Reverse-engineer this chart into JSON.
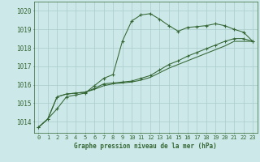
{
  "title": "Graphe pression niveau de la mer (hPa)",
  "background_color": "#cce8e8",
  "grid_color": "#aacccc",
  "line_color": "#336633",
  "xlim": [
    -0.5,
    23.5
  ],
  "ylim": [
    1013.4,
    1020.5
  ],
  "yticks": [
    1014,
    1015,
    1016,
    1017,
    1018,
    1019,
    1020
  ],
  "xticks": [
    0,
    1,
    2,
    3,
    4,
    5,
    6,
    7,
    8,
    9,
    10,
    11,
    12,
    13,
    14,
    15,
    16,
    17,
    18,
    19,
    20,
    21,
    22,
    23
  ],
  "series1": [
    1013.7,
    1014.15,
    1014.7,
    1015.35,
    1015.45,
    1015.55,
    1015.95,
    1016.35,
    1016.55,
    1018.35,
    1019.45,
    1019.78,
    1019.85,
    1019.55,
    1019.2,
    1018.9,
    1019.1,
    1019.15,
    1019.2,
    1019.3,
    1019.2,
    1019.0,
    1018.85,
    1018.35
  ],
  "series2": [
    1013.7,
    1014.15,
    1015.35,
    1015.5,
    1015.55,
    1015.6,
    1015.8,
    1016.05,
    1016.1,
    1016.15,
    1016.2,
    1016.35,
    1016.5,
    1016.8,
    1017.1,
    1017.3,
    1017.55,
    1017.75,
    1017.95,
    1018.15,
    1018.35,
    1018.5,
    1018.5,
    1018.35
  ],
  "series3": [
    1013.7,
    1014.15,
    1015.35,
    1015.5,
    1015.55,
    1015.6,
    1015.75,
    1015.95,
    1016.05,
    1016.1,
    1016.15,
    1016.25,
    1016.4,
    1016.65,
    1016.9,
    1017.1,
    1017.3,
    1017.5,
    1017.7,
    1017.9,
    1018.1,
    1018.35,
    1018.35,
    1018.35
  ],
  "figsize": [
    3.2,
    2.0
  ],
  "dpi": 100
}
